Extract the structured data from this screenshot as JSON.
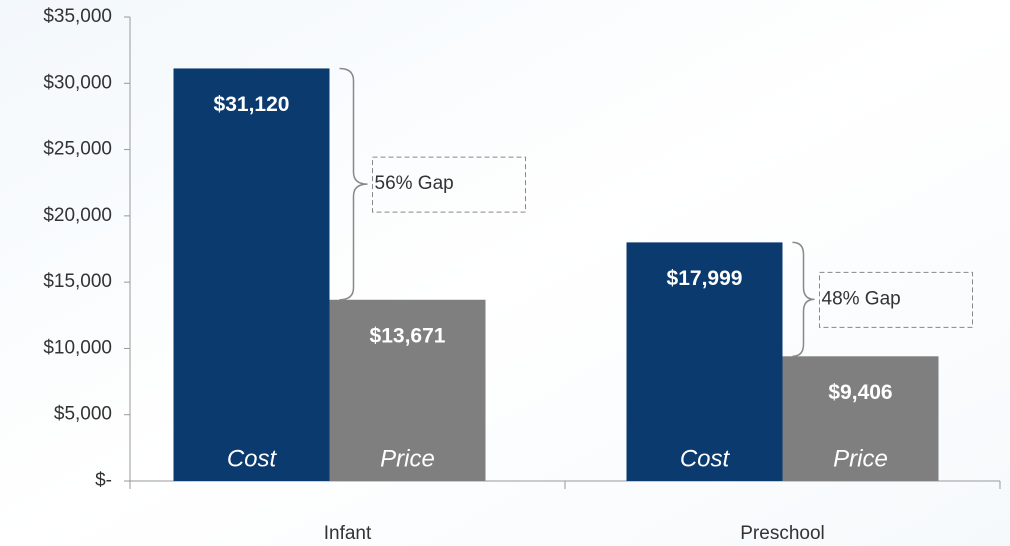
{
  "chart_data": {
    "type": "bar",
    "categories": [
      "Infant",
      "Preschool"
    ],
    "series": [
      {
        "name": "Cost",
        "color": "#0b3a6e",
        "values": [
          31120,
          17999
        ],
        "value_labels": [
          "$31,120",
          "$17,999"
        ]
      },
      {
        "name": "Price",
        "color": "#7f7f7f",
        "values": [
          13671,
          9406
        ],
        "value_labels": [
          "$13,671",
          "$9,406"
        ]
      }
    ],
    "annotations": [
      "56% Gap",
      "48% Gap"
    ],
    "ylim": [
      0,
      35000
    ],
    "yticks": [
      {
        "value": 0,
        "label": "$-"
      },
      {
        "value": 5000,
        "label": "$5,000"
      },
      {
        "value": 10000,
        "label": "$10,000"
      },
      {
        "value": 15000,
        "label": "$15,000"
      },
      {
        "value": 20000,
        "label": "$20,000"
      },
      {
        "value": 25000,
        "label": "$25,000"
      },
      {
        "value": 30000,
        "label": "$30,000"
      },
      {
        "value": 35000,
        "label": "$35,000"
      }
    ],
    "grid": false
  }
}
